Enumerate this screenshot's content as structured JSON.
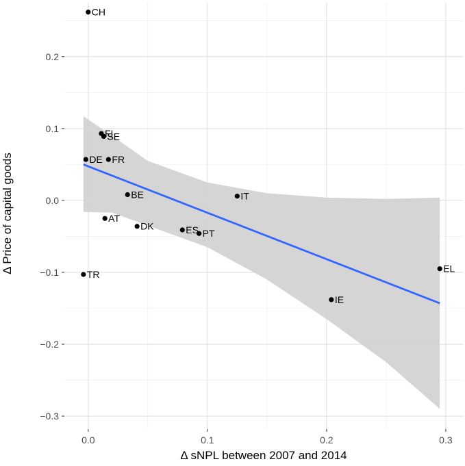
{
  "chart_data": {
    "type": "scatter",
    "title": "",
    "xlabel": "Δ sNPL between 2007 and 2014",
    "ylabel": "Δ Price of capital goods",
    "xlim": [
      -0.02,
      0.315
    ],
    "ylim": [
      -0.318,
      0.275
    ],
    "x_ticks": [
      0.0,
      0.1,
      0.2,
      0.3
    ],
    "x_tick_labels": [
      "0.0",
      "0.1",
      "0.2",
      "0.3"
    ],
    "y_ticks": [
      -0.3,
      -0.2,
      -0.1,
      0.0,
      0.1,
      0.2
    ],
    "y_tick_labels": [
      "−0.3",
      "−0.2",
      "−0.1",
      "0.0",
      "0.1",
      "0.2"
    ],
    "grid": true,
    "points": [
      {
        "label": "CH",
        "x": 0.0,
        "y": 0.262
      },
      {
        "label": "FI",
        "x": 0.011,
        "y": 0.093
      },
      {
        "label": "SE",
        "x": 0.013,
        "y": 0.089
      },
      {
        "label": "DE",
        "x": -0.002,
        "y": 0.057
      },
      {
        "label": "FR",
        "x": 0.017,
        "y": 0.057
      },
      {
        "label": "BE",
        "x": 0.033,
        "y": 0.008
      },
      {
        "label": "IT",
        "x": 0.125,
        "y": 0.006
      },
      {
        "label": "AT",
        "x": 0.014,
        "y": -0.025
      },
      {
        "label": "DK",
        "x": 0.041,
        "y": -0.036
      },
      {
        "label": "ES",
        "x": 0.079,
        "y": -0.041
      },
      {
        "label": "PT",
        "x": 0.093,
        "y": -0.046
      },
      {
        "label": "TR",
        "x": -0.004,
        "y": -0.103
      },
      {
        "label": "EL",
        "x": 0.295,
        "y": -0.095
      },
      {
        "label": "IE",
        "x": 0.204,
        "y": -0.138
      }
    ],
    "fit_line": {
      "x": [
        -0.004,
        0.295
      ],
      "y": [
        0.05,
        -0.143
      ],
      "color": "#3366ff"
    },
    "confidence_band": {
      "x": [
        -0.004,
        0.02,
        0.05,
        0.1,
        0.15,
        0.2,
        0.25,
        0.295
      ],
      "lower": [
        -0.016,
        -0.017,
        -0.035,
        -0.065,
        -0.11,
        -0.165,
        -0.225,
        -0.29
      ],
      "upper": [
        0.117,
        0.09,
        0.055,
        0.025,
        0.01,
        0.004,
        0.002,
        0.004
      ],
      "color": "#d3d3d3"
    }
  }
}
